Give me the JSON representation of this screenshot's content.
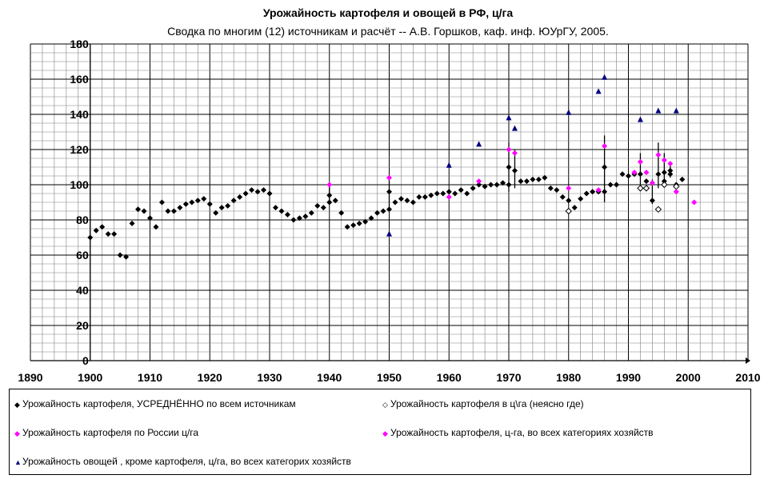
{
  "chart_data": {
    "type": "scatter",
    "title": "Урожайность картофеля и овощей  в РФ, ц/га",
    "subtitle": "Сводка по многим (12) источникам и расчёт -- А.В. Горшков, каф. инф. ЮУрГУ, 2005.",
    "xlim": [
      1890,
      2010
    ],
    "ylim": [
      0,
      180
    ],
    "x_ticks": [
      "1890",
      "1900",
      "1910",
      "1920",
      "1930",
      "1940",
      "1950",
      "1960",
      "1970",
      "1980",
      "1990",
      "2000",
      "2010"
    ],
    "y_ticks": [
      "0",
      "20",
      "40",
      "60",
      "80",
      "100",
      "120",
      "140",
      "160",
      "180"
    ],
    "series": [
      {
        "name": "Урожайность картофеля, УСРЕДНЁННО по всем источникам",
        "marker": "diamond",
        "color": "#000000",
        "points": [
          [
            1900,
            70
          ],
          [
            1901,
            74
          ],
          [
            1902,
            76
          ],
          [
            1903,
            72
          ],
          [
            1904,
            72
          ],
          [
            1905,
            60
          ],
          [
            1906,
            59
          ],
          [
            1907,
            78
          ],
          [
            1908,
            86
          ],
          [
            1909,
            85
          ],
          [
            1910,
            81
          ],
          [
            1911,
            76
          ],
          [
            1912,
            90
          ],
          [
            1913,
            85
          ],
          [
            1914,
            85
          ],
          [
            1915,
            87
          ],
          [
            1916,
            89
          ],
          [
            1917,
            90
          ],
          [
            1918,
            91
          ],
          [
            1919,
            92
          ],
          [
            1920,
            89
          ],
          [
            1921,
            84
          ],
          [
            1922,
            87
          ],
          [
            1923,
            88
          ],
          [
            1924,
            91
          ],
          [
            1925,
            93
          ],
          [
            1926,
            95
          ],
          [
            1927,
            97
          ],
          [
            1928,
            96
          ],
          [
            1929,
            97
          ],
          [
            1930,
            95
          ],
          [
            1931,
            87
          ],
          [
            1932,
            85
          ],
          [
            1933,
            83
          ],
          [
            1934,
            80
          ],
          [
            1935,
            81
          ],
          [
            1936,
            82
          ],
          [
            1937,
            84
          ],
          [
            1938,
            88
          ],
          [
            1939,
            87
          ],
          [
            1940,
            90
          ],
          [
            1940,
            94
          ],
          [
            1941,
            91
          ],
          [
            1942,
            84
          ],
          [
            1943,
            76
          ],
          [
            1944,
            77
          ],
          [
            1945,
            78
          ],
          [
            1946,
            79
          ],
          [
            1947,
            81
          ],
          [
            1948,
            84
          ],
          [
            1949,
            85
          ],
          [
            1950,
            86
          ],
          [
            1950,
            96
          ],
          [
            1951,
            90
          ],
          [
            1952,
            92
          ],
          [
            1953,
            91
          ],
          [
            1954,
            90
          ],
          [
            1955,
            93
          ],
          [
            1956,
            93
          ],
          [
            1957,
            94
          ],
          [
            1958,
            95
          ],
          [
            1959,
            95
          ],
          [
            1960,
            96
          ],
          [
            1961,
            95
          ],
          [
            1962,
            97
          ],
          [
            1963,
            95
          ],
          [
            1964,
            98
          ],
          [
            1965,
            100
          ],
          [
            1966,
            99
          ],
          [
            1967,
            100
          ],
          [
            1968,
            100
          ],
          [
            1969,
            101
          ],
          [
            1970,
            110
          ],
          [
            1970,
            100
          ],
          [
            1971,
            108
          ],
          [
            1972,
            102
          ],
          [
            1973,
            102
          ],
          [
            1974,
            103
          ],
          [
            1975,
            103
          ],
          [
            1976,
            104
          ],
          [
            1977,
            98
          ],
          [
            1978,
            97
          ],
          [
            1979,
            93
          ],
          [
            1980,
            91
          ],
          [
            1981,
            87
          ],
          [
            1982,
            92
          ],
          [
            1983,
            95
          ],
          [
            1984,
            96
          ],
          [
            1985,
            96
          ],
          [
            1986,
            110
          ],
          [
            1986,
            96
          ],
          [
            1987,
            100
          ],
          [
            1988,
            100
          ],
          [
            1989,
            106
          ],
          [
            1990,
            105
          ],
          [
            1991,
            106
          ],
          [
            1992,
            106
          ],
          [
            1993,
            102
          ],
          [
            1994,
            91
          ],
          [
            1995,
            106
          ],
          [
            1996,
            107
          ],
          [
            1996,
            102
          ],
          [
            1997,
            108
          ],
          [
            1997,
            106
          ],
          [
            1998,
            100
          ],
          [
            1999,
            103
          ]
        ]
      },
      {
        "name": "Урожайность картофеля в ц\\га (неясно где)",
        "marker": "open-diamond",
        "color": "#000000",
        "points": [
          [
            1980,
            85
          ],
          [
            1992,
            98
          ],
          [
            1993,
            98
          ],
          [
            1995,
            86
          ],
          [
            1996,
            100
          ],
          [
            1998,
            99
          ]
        ]
      },
      {
        "name": "Урожайность картофеля по России ц/га",
        "marker": "diamond",
        "color": "#ff00ff",
        "points": [
          [
            1940,
            100
          ],
          [
            1950,
            104
          ],
          [
            1965,
            102
          ],
          [
            1970,
            120
          ],
          [
            1971,
            118
          ],
          [
            1986,
            122
          ],
          [
            1992,
            113
          ],
          [
            1995,
            117
          ],
          [
            1996,
            114
          ],
          [
            1998,
            96
          ]
        ]
      },
      {
        "name": "Урожайность картофеля, ц-га, во всех категориях хозяйств",
        "marker": "diamond",
        "color": "#ff00ff",
        "points": [
          [
            1960,
            93
          ],
          [
            1980,
            98
          ],
          [
            1985,
            97
          ],
          [
            1991,
            107
          ],
          [
            1993,
            107
          ],
          [
            1994,
            101
          ],
          [
            1997,
            112
          ],
          [
            2001,
            90
          ]
        ]
      },
      {
        "name": "Урожайность овощей , кроме картофеля, ц/га, во всех категорих хозяйств",
        "marker": "triangle",
        "color": "#000080",
        "points": [
          [
            1950,
            72
          ],
          [
            1960,
            111
          ],
          [
            1965,
            123
          ],
          [
            1970,
            138
          ],
          [
            1971,
            132
          ],
          [
            1980,
            141
          ],
          [
            1985,
            153
          ],
          [
            1986,
            161
          ],
          [
            1992,
            137
          ],
          [
            1995,
            142
          ],
          [
            1998,
            142
          ]
        ]
      }
    ],
    "error_bars": [
      [
        1940,
        89,
        100
      ],
      [
        1950,
        86,
        104
      ],
      [
        1970,
        96,
        124
      ],
      [
        1971,
        98,
        120
      ],
      [
        1986,
        90,
        128
      ],
      [
        1992,
        98,
        118
      ],
      [
        1994,
        89,
        103
      ],
      [
        1995,
        98,
        124
      ],
      [
        1996,
        100,
        118
      ],
      [
        1997,
        104,
        112
      ]
    ]
  }
}
